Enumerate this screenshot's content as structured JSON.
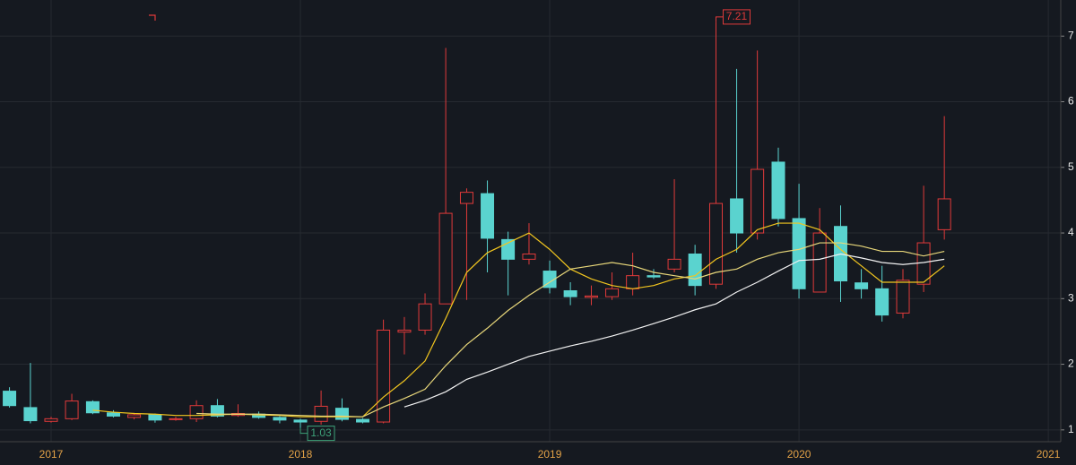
{
  "chart_data": {
    "type": "candlestick",
    "x": [
      2016.833,
      2016.917,
      2017.0,
      2017.083,
      2017.167,
      2017.25,
      2017.333,
      2017.417,
      2017.5,
      2017.583,
      2017.667,
      2017.75,
      2017.833,
      2017.917,
      2018.0,
      2018.083,
      2018.167,
      2018.25,
      2018.333,
      2018.417,
      2018.5,
      2018.583,
      2018.667,
      2018.75,
      2018.833,
      2018.917,
      2019.0,
      2019.083,
      2019.167,
      2019.25,
      2019.333,
      2019.417,
      2019.5,
      2019.583,
      2019.667,
      2019.75,
      2019.833,
      2019.917,
      2020.0,
      2020.083,
      2020.167,
      2020.25,
      2020.333,
      2020.417,
      2020.5,
      2020.583
    ],
    "open": [
      1.59,
      1.34,
      1.13,
      1.17,
      1.43,
      1.26,
      1.19,
      1.23,
      1.16,
      1.17,
      1.37,
      1.22,
      1.24,
      1.19,
      1.15,
      1.13,
      1.33,
      1.16,
      1.12,
      2.49,
      2.52,
      2.92,
      4.45,
      4.6,
      3.9,
      3.6,
      3.42,
      3.12,
      3.02,
      3.03,
      3.15,
      3.35,
      3.45,
      3.68,
      3.22,
      4.52,
      4.0,
      5.08,
      4.22,
      3.1,
      4.1,
      3.24,
      3.15,
      2.78,
      3.22,
      4.05
    ],
    "high": [
      1.65,
      2.02,
      1.2,
      1.55,
      1.45,
      1.3,
      1.26,
      1.25,
      1.2,
      1.45,
      1.47,
      1.39,
      1.28,
      1.21,
      1.17,
      1.6,
      1.48,
      1.18,
      2.68,
      2.72,
      3.08,
      6.82,
      4.68,
      4.8,
      4.02,
      4.15,
      3.58,
      3.25,
      3.2,
      3.4,
      3.7,
      3.45,
      4.82,
      3.82,
      7.21,
      6.5,
      6.78,
      5.3,
      4.75,
      4.38,
      4.42,
      3.45,
      3.5,
      3.45,
      4.72,
      5.78
    ],
    "low": [
      1.34,
      1.1,
      1.11,
      1.15,
      1.24,
      1.19,
      1.16,
      1.11,
      1.14,
      1.12,
      1.19,
      1.2,
      1.17,
      1.1,
      1.03,
      1.08,
      1.13,
      1.1,
      1.1,
      2.15,
      2.45,
      2.92,
      2.98,
      3.4,
      3.05,
      3.52,
      3.08,
      2.9,
      2.9,
      2.98,
      3.05,
      3.3,
      3.4,
      3.05,
      3.15,
      3.7,
      3.9,
      4.1,
      3.0,
      3.1,
      2.95,
      3.0,
      2.65,
      2.7,
      3.1,
      3.9
    ],
    "close": [
      1.37,
      1.14,
      1.17,
      1.44,
      1.26,
      1.21,
      1.23,
      1.15,
      1.17,
      1.37,
      1.21,
      1.25,
      1.19,
      1.15,
      1.12,
      1.36,
      1.16,
      1.12,
      2.52,
      2.52,
      2.92,
      4.3,
      4.62,
      3.92,
      3.6,
      3.68,
      3.17,
      3.03,
      3.04,
      3.15,
      3.35,
      3.33,
      3.6,
      3.2,
      4.45,
      4.0,
      4.97,
      4.22,
      3.15,
      4.0,
      3.27,
      3.15,
      2.75,
      3.28,
      3.85,
      4.52
    ],
    "up_color": "#e03a3a",
    "down_color": "#5ad3cf",
    "lines": [
      {
        "color": "#f2c61f",
        "values": [
          null,
          null,
          null,
          null,
          1.3,
          1.27,
          1.25,
          1.24,
          1.22,
          1.22,
          1.23,
          1.24,
          1.23,
          1.22,
          1.2,
          1.2,
          1.2,
          1.2,
          1.5,
          1.75,
          2.05,
          2.7,
          3.4,
          3.7,
          3.85,
          4.0,
          3.75,
          3.45,
          3.3,
          3.2,
          3.15,
          3.2,
          3.3,
          3.35,
          3.6,
          3.75,
          4.05,
          4.15,
          4.15,
          4.05,
          3.75,
          3.5,
          3.25,
          3.25,
          3.25,
          3.5
        ]
      },
      {
        "color": "#e8d77a",
        "values": [
          null,
          null,
          null,
          null,
          null,
          null,
          null,
          null,
          null,
          1.25,
          1.24,
          1.24,
          1.24,
          1.23,
          1.22,
          1.21,
          1.21,
          1.2,
          1.35,
          1.48,
          1.62,
          1.98,
          2.3,
          2.55,
          2.82,
          3.05,
          3.25,
          3.45,
          3.5,
          3.55,
          3.5,
          3.4,
          3.35,
          3.3,
          3.4,
          3.45,
          3.6,
          3.7,
          3.75,
          3.85,
          3.85,
          3.8,
          3.72,
          3.72,
          3.65,
          3.72
        ]
      },
      {
        "color": "#f2f2f2",
        "values": [
          null,
          null,
          null,
          null,
          null,
          null,
          null,
          null,
          null,
          null,
          null,
          null,
          null,
          null,
          null,
          null,
          null,
          null,
          null,
          1.35,
          1.45,
          1.58,
          1.77,
          1.88,
          2.0,
          2.12,
          2.2,
          2.28,
          2.35,
          2.43,
          2.52,
          2.62,
          2.72,
          2.83,
          2.92,
          3.1,
          3.25,
          3.42,
          3.58,
          3.6,
          3.68,
          3.62,
          3.55,
          3.52,
          3.55,
          3.6
        ]
      }
    ],
    "max_label": 7.21,
    "min_label": 1.03,
    "xlim": [
      2016.795,
      2021.05
    ],
    "xticks": [
      2017,
      2018,
      2019,
      2020,
      2021
    ],
    "ylim": [
      0.82,
      7.55
    ],
    "yticks": [
      1,
      2,
      3,
      4,
      5,
      6,
      7
    ],
    "grid": true
  }
}
